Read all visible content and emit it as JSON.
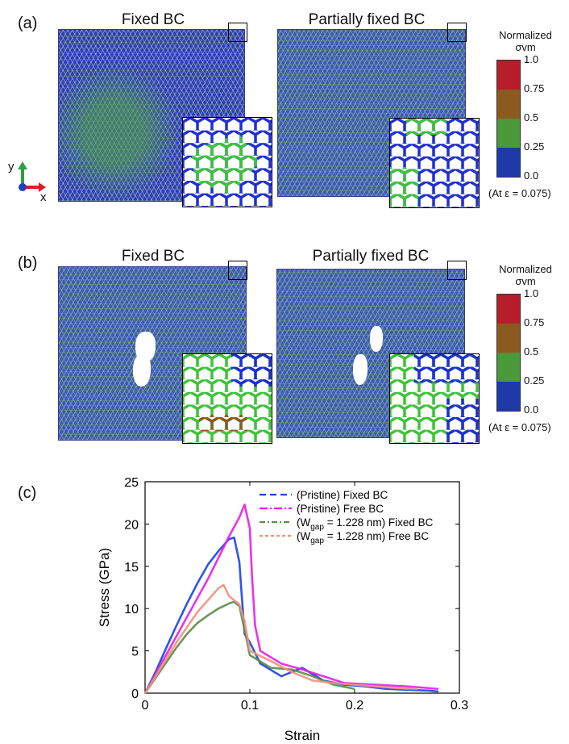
{
  "panel_a": {
    "label": "(a)",
    "left_title": "Fixed BC",
    "right_title": "Partially fixed BC",
    "axes": {
      "y": "y",
      "x": "x"
    }
  },
  "panel_b": {
    "label": "(b)",
    "left_title": "Fixed BC",
    "right_title": "Partially fixed BC"
  },
  "colorbar": {
    "title_line1": "Normalized",
    "title_line2": "σvm",
    "ticks": [
      "1.0",
      "0.75",
      "0.5",
      "0.25",
      "0.0"
    ],
    "note": "(At ε = 0.075)",
    "colors": [
      "#b81e2a",
      "#8b5a1e",
      "#4a9a3a",
      "#1e3aa8"
    ]
  },
  "panel_c": {
    "label": "(c)"
  },
  "chart_data": {
    "type": "line",
    "title": "",
    "xlabel": "Strain",
    "ylabel": "Stress (GPa)",
    "xlim": [
      0,
      0.3
    ],
    "ylim": [
      0,
      25
    ],
    "xticks": [
      "0",
      "0.1",
      "0.2",
      "0.3"
    ],
    "yticks": [
      "0",
      "5",
      "10",
      "15",
      "20",
      "25"
    ],
    "legend": [
      {
        "prefix": "(Pristine) Fixed BC",
        "color": "#1a44e0",
        "dash": "8,5"
      },
      {
        "prefix": "(Pristine) Free BC",
        "color": "#e61ee6",
        "dash": "10,3,2,3"
      },
      {
        "prefix": "(W",
        "sub": "gap",
        "suffix": " = 1.228 nm) Fixed BC",
        "color": "#5a8a4a",
        "dash": "7,3,2,3"
      },
      {
        "prefix": "(W",
        "sub": "gap",
        "suffix": " = 1.228 nm) Free BC",
        "color": "#f2917a",
        "dash": "4,3"
      }
    ],
    "series": [
      {
        "name": "(Pristine) Fixed BC",
        "color": "#1a44e0",
        "x": [
          0,
          0.01,
          0.02,
          0.03,
          0.04,
          0.05,
          0.06,
          0.07,
          0.08,
          0.085,
          0.09,
          0.092,
          0.095,
          0.1,
          0.11,
          0.13,
          0.15,
          0.17,
          0.19,
          0.21,
          0.23,
          0.25,
          0.27,
          0.28
        ],
        "y": [
          0,
          2.5,
          5.3,
          8.0,
          10.6,
          13.0,
          15.2,
          16.8,
          18.2,
          18.4,
          15.5,
          12.0,
          7.0,
          6.0,
          3.5,
          2.0,
          3.0,
          1.5,
          1.0,
          0.8,
          0.5,
          0.4,
          0.3,
          0.2
        ]
      },
      {
        "name": "(Pristine) Free BC",
        "color": "#e61ee6",
        "x": [
          0,
          0.02,
          0.04,
          0.06,
          0.08,
          0.09,
          0.095,
          0.1,
          0.102,
          0.105,
          0.11,
          0.13,
          0.15,
          0.17,
          0.19,
          0.22,
          0.25,
          0.28
        ],
        "y": [
          0,
          4.5,
          9.0,
          13.5,
          18.5,
          20.8,
          22.3,
          19.5,
          14.0,
          8.0,
          5.0,
          3.5,
          2.8,
          2.0,
          1.2,
          1.0,
          0.8,
          0.5
        ]
      },
      {
        "name": "(Wgap = 1.228 nm) Fixed BC",
        "color": "#5a8a4a",
        "x": [
          0,
          0.01,
          0.02,
          0.03,
          0.04,
          0.05,
          0.06,
          0.07,
          0.08,
          0.085,
          0.09,
          0.095,
          0.1,
          0.12,
          0.14,
          0.16,
          0.18,
          0.2
        ],
        "y": [
          0,
          1.8,
          3.6,
          5.4,
          7.0,
          8.3,
          9.2,
          10.0,
          10.6,
          10.8,
          10.3,
          7.5,
          4.5,
          3.0,
          2.8,
          2.0,
          1.0,
          0.5
        ]
      },
      {
        "name": "(Wgap = 1.228 nm) Free BC",
        "color": "#f2917a",
        "x": [
          0,
          0.01,
          0.02,
          0.03,
          0.04,
          0.05,
          0.06,
          0.07,
          0.075,
          0.08,
          0.085,
          0.09,
          0.095,
          0.1,
          0.12,
          0.14,
          0.16,
          0.18,
          0.2,
          0.22,
          0.24,
          0.26
        ],
        "y": [
          0,
          2.0,
          4.0,
          6.0,
          7.8,
          9.6,
          11.0,
          12.4,
          12.8,
          11.5,
          11.0,
          10.5,
          8.5,
          5.0,
          3.8,
          2.5,
          1.5,
          1.2,
          1.0,
          0.8,
          0.6,
          0.5
        ]
      }
    ]
  }
}
